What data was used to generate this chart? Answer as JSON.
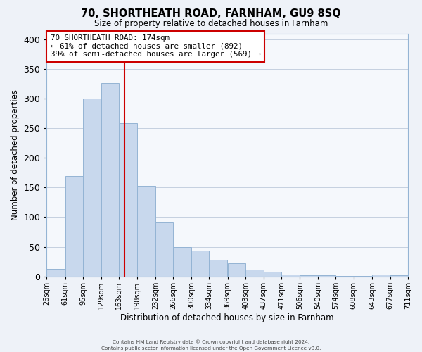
{
  "title1": "70, SHORTHEATH ROAD, FARNHAM, GU9 8SQ",
  "title2": "Size of property relative to detached houses in Farnham",
  "xlabel": "Distribution of detached houses by size in Farnham",
  "ylabel": "Number of detached properties",
  "bar_left_edges": [
    26,
    61,
    95,
    129,
    163,
    198,
    232,
    266,
    300,
    334,
    369,
    403,
    437,
    471,
    506,
    540,
    574,
    608,
    643,
    677
  ],
  "bar_heights": [
    13,
    170,
    300,
    326,
    258,
    153,
    91,
    50,
    43,
    28,
    22,
    11,
    8,
    3,
    2,
    2,
    1,
    1,
    3,
    2
  ],
  "bin_width": 34,
  "bar_color": "#c8d8ed",
  "bar_edge_color": "#94b4d4",
  "tick_labels": [
    "26sqm",
    "61sqm",
    "95sqm",
    "129sqm",
    "163sqm",
    "198sqm",
    "232sqm",
    "266sqm",
    "300sqm",
    "334sqm",
    "369sqm",
    "403sqm",
    "437sqm",
    "471sqm",
    "506sqm",
    "540sqm",
    "574sqm",
    "608sqm",
    "643sqm",
    "677sqm",
    "711sqm"
  ],
  "vline_x": 174,
  "vline_color": "#cc0000",
  "ylim": [
    0,
    410
  ],
  "yticks": [
    0,
    50,
    100,
    150,
    200,
    250,
    300,
    350,
    400
  ],
  "annotation_title": "70 SHORTHEATH ROAD: 174sqm",
  "annotation_line1": "← 61% of detached houses are smaller (892)",
  "annotation_line2": "39% of semi-detached houses are larger (569) →",
  "annotation_box_color": "#ffffff",
  "annotation_box_edge": "#cc0000",
  "footer1": "Contains HM Land Registry data © Crown copyright and database right 2024.",
  "footer2": "Contains public sector information licensed under the Open Government Licence v3.0.",
  "bg_color": "#eef2f8",
  "plot_bg_color": "#f5f8fc",
  "grid_color": "#c5d0e0"
}
